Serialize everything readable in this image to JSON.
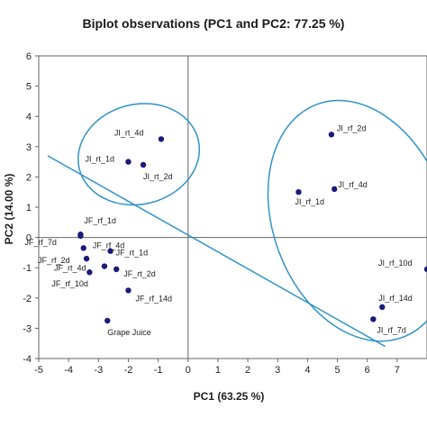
{
  "chart_data": {
    "type": "scatter",
    "title": "Biplot observations (PC1 and PC2: 77.25 %)",
    "xlabel": "PC1 (63.25 %)",
    "ylabel": "PC2 (14.00 %)",
    "xlim": [
      -5,
      8
    ],
    "ylim": [
      -4,
      6
    ],
    "xticks": [
      -5,
      -4,
      -3,
      -2,
      -1,
      0,
      1,
      2,
      3,
      4,
      5,
      6,
      7
    ],
    "yticks": [
      -4,
      -3,
      -2,
      -1,
      0,
      1,
      2,
      3,
      4,
      5,
      6
    ],
    "grid": false,
    "points": [
      {
        "label": "JI_rt_4d",
        "x": -0.9,
        "y": 3.25
      },
      {
        "label": "JI_rt_1d",
        "x": -2.0,
        "y": 2.5
      },
      {
        "label": "JI_rt_2d",
        "x": -1.5,
        "y": 2.4
      },
      {
        "label": "JI_rf_2d",
        "x": 4.8,
        "y": 3.4
      },
      {
        "label": "JI_rf_4d",
        "x": 4.9,
        "y": 1.6
      },
      {
        "label": "JI_rf_1d",
        "x": 3.7,
        "y": 1.5
      },
      {
        "label": "JF_rf_1d",
        "x": -3.6,
        "y": 0.1
      },
      {
        "label": "JF_rf_7d",
        "x": -3.6,
        "y": 0.05
      },
      {
        "label": "JF_rf_4d",
        "x": -3.5,
        "y": -0.35
      },
      {
        "label": "JF_rt_1d",
        "x": -2.6,
        "y": -0.45
      },
      {
        "label": "JF_rf_2d",
        "x": -3.4,
        "y": -0.7
      },
      {
        "label": "JF_rt_4d",
        "x": -2.8,
        "y": -0.95
      },
      {
        "label": "JF_rt_2d",
        "x": -2.4,
        "y": -1.05
      },
      {
        "label": "JF_rf_10d",
        "x": -3.3,
        "y": -1.15
      },
      {
        "label": "JF_rf_14d",
        "x": -2.0,
        "y": -1.75
      },
      {
        "label": "Grape Juice",
        "x": -2.7,
        "y": -2.75
      },
      {
        "label": "JI_rf_10d",
        "x": 8.0,
        "y": -1.05
      },
      {
        "label": "JI_rf_14d",
        "x": 6.5,
        "y": -2.3
      },
      {
        "label": "JI_rf_7d",
        "x": 6.2,
        "y": -2.7
      }
    ],
    "line": {
      "x": [
        -4.7,
        6.6
      ],
      "y": [
        2.7,
        -3.6
      ]
    },
    "ellipses": [
      {
        "cx": -1.65,
        "cy": 2.75,
        "rx": 2.05,
        "ry": 1.65,
        "rotation": 14
      },
      {
        "cx": 5.75,
        "cy": 0.55,
        "rx": 2.9,
        "ry": 4.1,
        "rotation": 20
      }
    ],
    "colors": {
      "marker": "#1a1a7a",
      "line": "#2f93c7",
      "axis": "#666666"
    }
  }
}
